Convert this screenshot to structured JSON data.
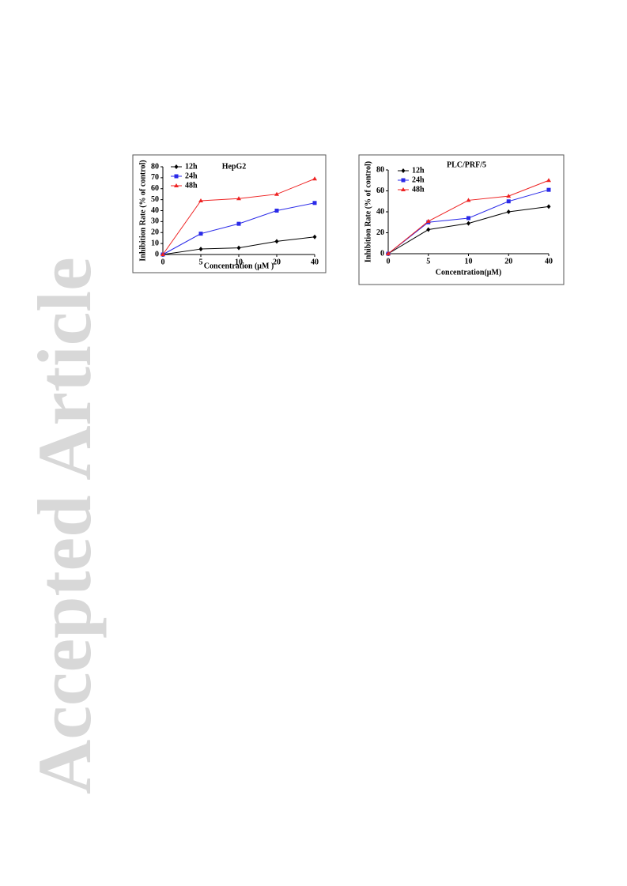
{
  "watermark": "Accepted Article",
  "chart_data": [
    {
      "type": "line",
      "title": "HepG2",
      "x_label": "Concentration (μM )",
      "y_label": "Inhibition Rate (% of control)",
      "categories": [
        "0",
        "5",
        "10",
        "20",
        "40"
      ],
      "series": [
        {
          "name": "12h",
          "color": "#000000",
          "marker": "diamond",
          "values": [
            0,
            5,
            6,
            12,
            16
          ]
        },
        {
          "name": "24h",
          "color": "#2a2ae8",
          "marker": "square",
          "values": [
            0,
            19,
            28,
            40,
            47
          ]
        },
        {
          "name": "48h",
          "color": "#ee2222",
          "marker": "triangle",
          "values": [
            0,
            49,
            51,
            55,
            69
          ]
        }
      ],
      "ylim": [
        0,
        80
      ],
      "yticks": [
        0,
        10,
        20,
        30,
        40,
        50,
        60,
        70,
        80
      ],
      "legend": "upper left"
    },
    {
      "type": "line",
      "title": "PLC/PRF/5",
      "x_label": "Concentration(μM)",
      "y_label": "Inhibition Rate (% of control)",
      "categories": [
        "0",
        "5",
        "10",
        "20",
        "40"
      ],
      "series": [
        {
          "name": "12h",
          "color": "#000000",
          "marker": "diamond",
          "values": [
            0,
            23,
            29,
            40,
            45
          ]
        },
        {
          "name": "24h",
          "color": "#2a2ae8",
          "marker": "square",
          "values": [
            0,
            30,
            34,
            50,
            61
          ]
        },
        {
          "name": "48h",
          "color": "#ee2222",
          "marker": "triangle",
          "values": [
            0,
            31,
            51,
            55,
            70
          ]
        }
      ],
      "ylim": [
        0,
        80
      ],
      "yticks": [
        0,
        20,
        40,
        60,
        80
      ],
      "legend": "upper left"
    }
  ]
}
